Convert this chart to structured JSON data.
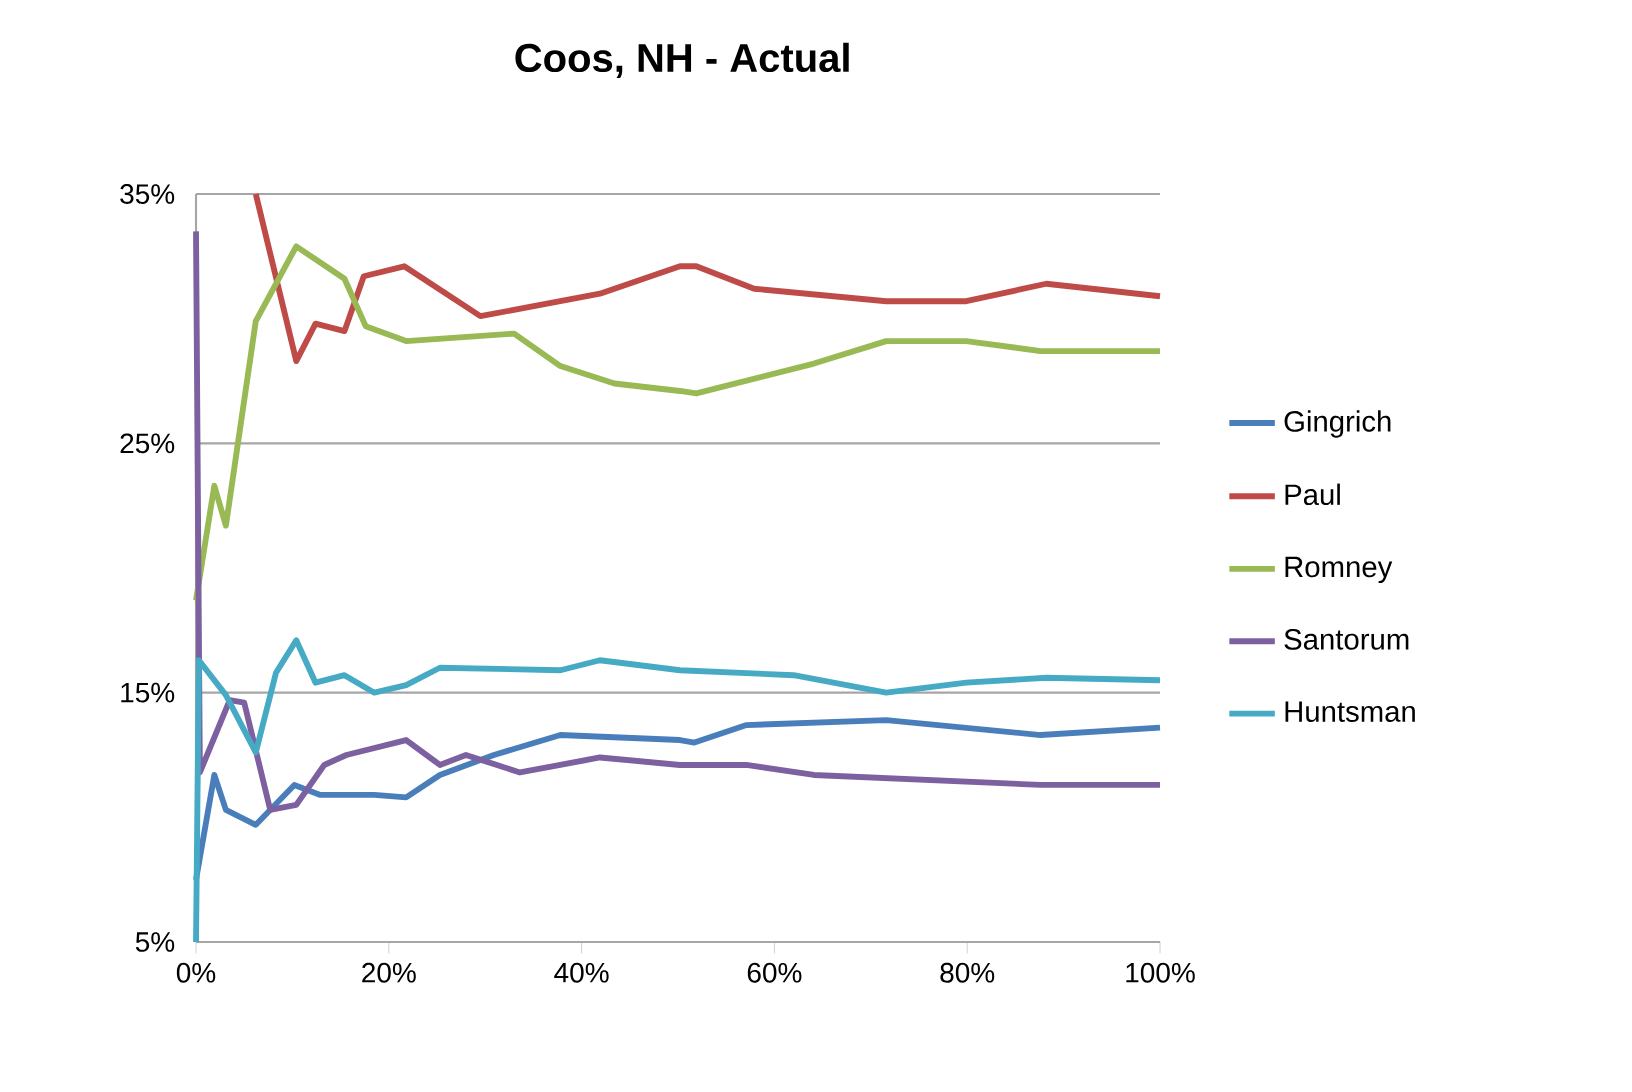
{
  "chart_data": {
    "type": "line",
    "title": "Coos, NH - Actual",
    "xlim": [
      0,
      100
    ],
    "ylim": [
      5,
      35
    ],
    "xticks": [
      {
        "value": 0,
        "label": "0%"
      },
      {
        "value": 20,
        "label": "20%"
      },
      {
        "value": 40,
        "label": "40%"
      },
      {
        "value": 60,
        "label": "60%"
      },
      {
        "value": 80,
        "label": "80%"
      },
      {
        "value": 100,
        "label": "100%"
      }
    ],
    "yticks": [
      {
        "value": 5,
        "label": "5%"
      },
      {
        "value": 15,
        "label": "15%"
      },
      {
        "value": 25,
        "label": "25%"
      },
      {
        "value": 35,
        "label": "35%"
      }
    ],
    "grid": "y",
    "legend": "right",
    "marker": "none",
    "line_style": "solid",
    "series": [
      {
        "name": "Gingrich",
        "color": "#4a7ebb",
        "x": [
          0,
          1.9,
          3.1,
          6.2,
          10.2,
          12.9,
          18.5,
          21.8,
          25.3,
          30.9,
          37.8,
          50.2,
          51.7,
          57.1,
          71.6,
          87.6,
          100
        ],
        "values": [
          7.5,
          11.7,
          10.3,
          9.7,
          11.3,
          10.9,
          10.9,
          10.8,
          11.7,
          12.5,
          13.3,
          13.1,
          13.0,
          13.7,
          13.9,
          13.3,
          13.6
        ]
      },
      {
        "name": "Paul",
        "color": "#be4b48",
        "x": [
          6.2,
          10.4,
          12.4,
          15.4,
          17.4,
          21.6,
          29.5,
          41.9,
          50.2,
          51.9,
          57.9,
          71.6,
          79.9,
          88.2,
          100
        ],
        "values": [
          35,
          28.3,
          29.8,
          29.5,
          31.7,
          32.1,
          30.1,
          31.0,
          32.1,
          32.1,
          31.2,
          30.7,
          30.7,
          31.4,
          30.9
        ]
      },
      {
        "name": "Romney",
        "color": "#98b954",
        "x": [
          0,
          1.9,
          3.1,
          6.2,
          10.4,
          15.4,
          17.6,
          21.8,
          33,
          37.8,
          43.4,
          50.2,
          51.9,
          64.1,
          71.6,
          79.9,
          87.6,
          100
        ],
        "values": [
          18.7,
          23.3,
          21.7,
          29.9,
          32.9,
          31.6,
          29.7,
          29.1,
          29.4,
          28.1,
          27.4,
          27.1,
          27.0,
          28.2,
          29.1,
          29.1,
          28.7,
          28.7
        ]
      },
      {
        "name": "Santorum",
        "color": "#7d60a0",
        "x": [
          0,
          0.4,
          3.5,
          5,
          7.7,
          10.4,
          13.3,
          15.6,
          21.8,
          25.3,
          28,
          33.6,
          41.9,
          50.2,
          57.1,
          64.1,
          87.6,
          100
        ],
        "values": [
          33.5,
          11.8,
          14.7,
          14.6,
          10.3,
          10.5,
          12.1,
          12.5,
          13.1,
          12.1,
          12.5,
          11.8,
          12.4,
          12.1,
          12.1,
          11.7,
          11.3,
          11.3
        ]
      },
      {
        "name": "Huntsman",
        "color": "#46aac5",
        "x": [
          0,
          0.3,
          3.1,
          6.2,
          8.3,
          10.4,
          12.4,
          15.4,
          18.5,
          21.8,
          25.3,
          37.8,
          41.9,
          50.2,
          62,
          71.6,
          79.9,
          88.2,
          100
        ],
        "values": [
          5,
          16.3,
          14.9,
          12.6,
          15.8,
          17.1,
          15.4,
          15.7,
          15.0,
          15.3,
          16.0,
          15.9,
          16.3,
          15.9,
          15.7,
          15.0,
          15.4,
          15.6,
          15.5
        ]
      }
    ]
  }
}
